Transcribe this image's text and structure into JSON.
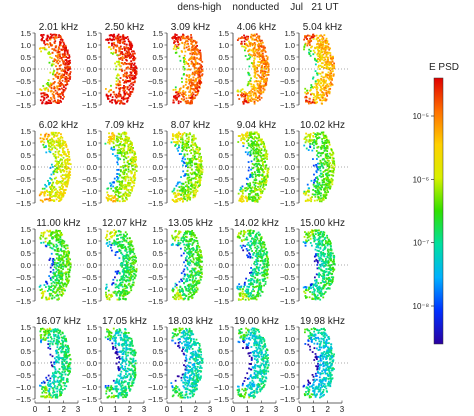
{
  "chart_data": {
    "type": "heatmap",
    "title": "dens-high    nonducted    Jul   21 UT",
    "colorbar": {
      "label": "E PSD",
      "ticks": [
        "10⁻⁵",
        "10⁻⁶",
        "10⁻⁷",
        "10⁻⁸"
      ],
      "tick_exponents": [
        -5,
        -6,
        -7,
        -8
      ],
      "range_exponent": [
        -8.6,
        -4.4
      ],
      "colors": [
        "#2a00a0",
        "#0030ff",
        "#00b0ff",
        "#00e0a0",
        "#30e000",
        "#d8f000",
        "#ffd000",
        "#ff7000",
        "#e00000"
      ]
    },
    "xticks": [
      "0",
      "1",
      "2",
      "3"
    ],
    "yticks": [
      "1.5",
      "1.0",
      "0.5",
      "0.0",
      "-0.5",
      "-1.0",
      "-1.5"
    ],
    "xlim": [
      0,
      3
    ],
    "ylim": [
      -1.5,
      1.5
    ],
    "panels": [
      {
        "label": "2.01 kHz",
        "psd_log10": -5.2
      },
      {
        "label": "2.50 kHz",
        "psd_log10": -5.0
      },
      {
        "label": "3.09 kHz",
        "psd_log10": -5.4
      },
      {
        "label": "4.06 kHz",
        "psd_log10": -5.6
      },
      {
        "label": "5.04 kHz",
        "psd_log10": -5.8
      },
      {
        "label": "6.02 kHz",
        "psd_log10": -6.3
      },
      {
        "label": "7.09 kHz",
        "psd_log10": -6.6
      },
      {
        "label": "8.07 kHz",
        "psd_log10": -6.7
      },
      {
        "label": "9.04 kHz",
        "psd_log10": -6.8
      },
      {
        "label": "10.02 kHz",
        "psd_log10": -6.9
      },
      {
        "label": "11.00 kHz",
        "psd_log10": -7.0
      },
      {
        "label": "12.07 kHz",
        "psd_log10": -7.1
      },
      {
        "label": "13.05 kHz",
        "psd_log10": -7.1
      },
      {
        "label": "14.02 kHz",
        "psd_log10": -7.2
      },
      {
        "label": "15.00 kHz",
        "psd_log10": -7.3
      },
      {
        "label": "16.07 kHz",
        "psd_log10": -7.4
      },
      {
        "label": "17.05 kHz",
        "psd_log10": -7.5
      },
      {
        "label": "18.03 kHz",
        "psd_log10": -7.6
      },
      {
        "label": "19.00 kHz",
        "psd_log10": -7.6
      },
      {
        "label": "19.98 kHz",
        "psd_log10": -7.7
      }
    ]
  }
}
